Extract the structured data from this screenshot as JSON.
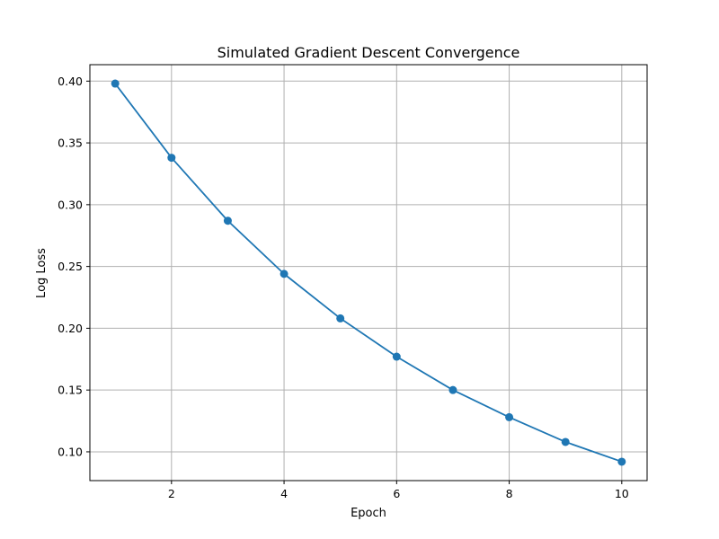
{
  "chart_data": {
    "type": "line",
    "title": "Simulated Gradient Descent Convergence",
    "xlabel": "Epoch",
    "ylabel": "Log Loss",
    "x": [
      1,
      2,
      3,
      4,
      5,
      6,
      7,
      8,
      9,
      10
    ],
    "series": [
      {
        "values": [
          0.398,
          0.338,
          0.287,
          0.244,
          0.208,
          0.177,
          0.15,
          0.128,
          0.108,
          0.092
        ],
        "color": "#1f77b4",
        "marker": "circle"
      }
    ],
    "xlim": [
      0.55,
      10.45
    ],
    "ylim": [
      0.0767,
      0.4133
    ],
    "xticks": [
      2,
      4,
      6,
      8,
      10
    ],
    "xtick_labels": [
      "2",
      "4",
      "6",
      "8",
      "10"
    ],
    "yticks": [
      0.1,
      0.15,
      0.2,
      0.25,
      0.3,
      0.35,
      0.4
    ],
    "ytick_labels": [
      "0.10",
      "0.15",
      "0.20",
      "0.25",
      "0.30",
      "0.35",
      "0.40"
    ],
    "grid": true,
    "grid_color": "#b0b0b0",
    "axis_color": "#000000",
    "legend": "none"
  }
}
